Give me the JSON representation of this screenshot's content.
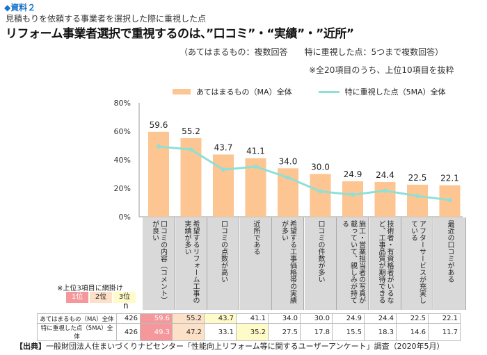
{
  "header": {
    "tag": "◆資料２",
    "subtitle": "見積もりを依頼する事業者を選択した際に重視した点",
    "title": "リフォーム事業者選択で重視するのは、”口コミ”・“実績”・”近所”",
    "note1": "（あてはまるもの：複数回答　　特に重視した点：5つまで複数回答）",
    "note2": "※全20項目のうち、上位10項目を抜粋"
  },
  "chart_data": {
    "type": "bar+line",
    "categories": [
      "口コミの内容（コメント）が良い",
      "希望するリフォーム工事の実績が多い",
      "口コミの点数が高い",
      "近所である",
      "希望する工事価格帯の実績が多い",
      "口コミの件数が多い",
      "施工・営業担当者の写真が載っていて、親しみが持てる",
      "技術者・有資格者がいるなど、工事品質が期待できる",
      "アフターサービスが充実している",
      "最近の口コミがある"
    ],
    "series": [
      {
        "name": "あてはまるもの（MA）全体",
        "type": "bar",
        "color": "#fcc592",
        "values": [
          59.6,
          55.2,
          43.7,
          41.1,
          34.0,
          30.0,
          24.9,
          24.4,
          22.5,
          22.1
        ]
      },
      {
        "name": "特に重視した点（5MA）全体",
        "type": "line",
        "color": "#8ee0d6",
        "values": [
          49.3,
          47.2,
          33.1,
          35.2,
          27.5,
          17.8,
          15.5,
          18.3,
          14.6,
          11.7
        ]
      }
    ],
    "ylim": [
      0,
      80
    ],
    "yticks": [
      "0%",
      "20%",
      "40%",
      "60%",
      "80%"
    ],
    "grid": false,
    "legend": "top"
  },
  "table": {
    "note": "※上位3項目に網掛け",
    "ranks": [
      {
        "label": "1位",
        "color": "#f4989c"
      },
      {
        "label": "2位",
        "color": "#fde0c8"
      },
      {
        "label": "3位",
        "color": "#fffbc8"
      }
    ],
    "n_label": "n",
    "rows": [
      {
        "label": "あてはまるもの（MA）全体",
        "n": "426",
        "values": [
          "59.6",
          "55.2",
          "43.7",
          "41.1",
          "34.0",
          "30.0",
          "24.9",
          "24.4",
          "22.5",
          "22.1"
        ]
      },
      {
        "label": "特に重視した点（5MA）全体",
        "n": "426",
        "values": [
          "49.3",
          "47.2",
          "33.1",
          "35.2",
          "27.5",
          "17.8",
          "15.5",
          "18.3",
          "14.6",
          "11.7"
        ]
      }
    ]
  },
  "source": {
    "prefix": "【出典】",
    "text": "一般財団法人住まいづくりナビセンター「性能向上リフォーム等に関するユーザーアンケート」調査（2020年5月）"
  }
}
